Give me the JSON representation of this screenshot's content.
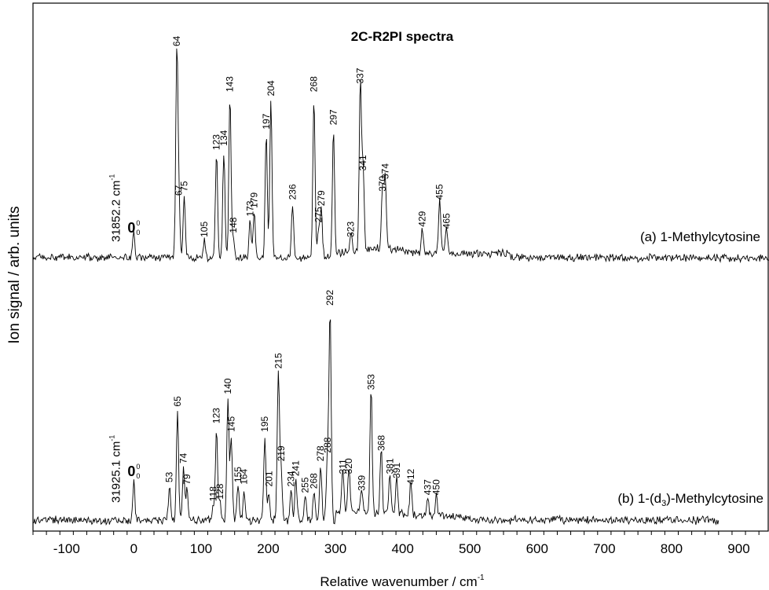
{
  "chart_data": {
    "type": "line",
    "title": "2C-R2PI spectra",
    "xlabel": "Relative wavenumber / cm",
    "xlabel_superscript": "-1",
    "ylabel": "Ion signal / arb. units",
    "xlim": [
      -150,
      945
    ],
    "xticks": [
      -100,
      0,
      100,
      200,
      300,
      400,
      500,
      600,
      700,
      800,
      900
    ],
    "xtick_labels": [
      "-100",
      "0",
      "100",
      "200",
      "300",
      "400",
      "500",
      "600",
      "700",
      "800",
      "900"
    ],
    "grid": false,
    "series": [
      {
        "name": "(a) 1-Methylcytosine",
        "origin_label": "31852.2 cm",
        "origin_label_superscript": "-1",
        "origin_band_main": "0",
        "origin_band_sup": "0",
        "origin_band_sub": "0",
        "x_range": [
          -150,
          945
        ],
        "baseline": 0,
        "peaks": [
          {
            "x": 0,
            "y": 0.12,
            "label": ""
          },
          {
            "x": 64,
            "y": 1.0,
            "label": "64"
          },
          {
            "x": 67,
            "y": 0.28,
            "label": "67"
          },
          {
            "x": 75,
            "y": 0.3,
            "label": "75"
          },
          {
            "x": 105,
            "y": 0.08,
            "label": "105"
          },
          {
            "x": 123,
            "y": 0.5,
            "label": "123"
          },
          {
            "x": 134,
            "y": 0.52,
            "label": "134"
          },
          {
            "x": 143,
            "y": 0.78,
            "label": "143"
          },
          {
            "x": 148,
            "y": 0.1,
            "label": "148"
          },
          {
            "x": 173,
            "y": 0.18,
            "label": "173"
          },
          {
            "x": 179,
            "y": 0.22,
            "label": "179"
          },
          {
            "x": 197,
            "y": 0.6,
            "label": "197"
          },
          {
            "x": 204,
            "y": 0.76,
            "label": "204"
          },
          {
            "x": 236,
            "y": 0.26,
            "label": "236"
          },
          {
            "x": 268,
            "y": 0.78,
            "label": "268"
          },
          {
            "x": 275,
            "y": 0.15,
            "label": "275"
          },
          {
            "x": 279,
            "y": 0.23,
            "label": "279"
          },
          {
            "x": 297,
            "y": 0.62,
            "label": "297"
          },
          {
            "x": 323,
            "y": 0.08,
            "label": "323"
          },
          {
            "x": 337,
            "y": 0.82,
            "label": "337"
          },
          {
            "x": 341,
            "y": 0.4,
            "label": "341"
          },
          {
            "x": 370,
            "y": 0.3,
            "label": "370"
          },
          {
            "x": 374,
            "y": 0.36,
            "label": "374"
          },
          {
            "x": 429,
            "y": 0.13,
            "label": "429"
          },
          {
            "x": 455,
            "y": 0.26,
            "label": "455"
          },
          {
            "x": 465,
            "y": 0.12,
            "label": "465"
          }
        ]
      },
      {
        "name": "(b) 1-(d",
        "name_subscript": "3",
        "name_suffix": ")-Methylcytosine",
        "origin_label": "31925.1 cm",
        "origin_label_superscript": "-1",
        "origin_band_main": "0",
        "origin_band_sup": "0",
        "origin_band_sub": "0",
        "x_range": [
          -150,
          870
        ],
        "baseline": 0,
        "peaks": [
          {
            "x": 0,
            "y": 0.18,
            "label": ""
          },
          {
            "x": 53,
            "y": 0.16,
            "label": "53"
          },
          {
            "x": 65,
            "y": 0.52,
            "label": "65"
          },
          {
            "x": 74,
            "y": 0.25,
            "label": "74"
          },
          {
            "x": 79,
            "y": 0.15,
            "label": "79"
          },
          {
            "x": 118,
            "y": 0.07,
            "label": "118"
          },
          {
            "x": 123,
            "y": 0.44,
            "label": "123"
          },
          {
            "x": 128,
            "y": 0.08,
            "label": "128"
          },
          {
            "x": 140,
            "y": 0.58,
            "label": "140"
          },
          {
            "x": 145,
            "y": 0.4,
            "label": "145"
          },
          {
            "x": 155,
            "y": 0.16,
            "label": "155"
          },
          {
            "x": 164,
            "y": 0.15,
            "label": "164"
          },
          {
            "x": 195,
            "y": 0.4,
            "label": "195"
          },
          {
            "x": 201,
            "y": 0.14,
            "label": "201"
          },
          {
            "x": 215,
            "y": 0.7,
            "label": "215"
          },
          {
            "x": 219,
            "y": 0.26,
            "label": "219"
          },
          {
            "x": 234,
            "y": 0.14,
            "label": "234"
          },
          {
            "x": 241,
            "y": 0.19,
            "label": "241"
          },
          {
            "x": 255,
            "y": 0.11,
            "label": "255"
          },
          {
            "x": 268,
            "y": 0.13,
            "label": "268"
          },
          {
            "x": 278,
            "y": 0.26,
            "label": "278"
          },
          {
            "x": 288,
            "y": 0.3,
            "label": "288"
          },
          {
            "x": 292,
            "y": 1.0,
            "label": "292"
          },
          {
            "x": 311,
            "y": 0.2,
            "label": "311"
          },
          {
            "x": 320,
            "y": 0.2,
            "label": "320"
          },
          {
            "x": 339,
            "y": 0.12,
            "label": "339"
          },
          {
            "x": 353,
            "y": 0.6,
            "label": "353"
          },
          {
            "x": 368,
            "y": 0.31,
            "label": "368"
          },
          {
            "x": 381,
            "y": 0.2,
            "label": "381"
          },
          {
            "x": 391,
            "y": 0.18,
            "label": "391"
          },
          {
            "x": 412,
            "y": 0.15,
            "label": "412"
          },
          {
            "x": 437,
            "y": 0.1,
            "label": "437"
          },
          {
            "x": 450,
            "y": 0.1,
            "label": "450"
          }
        ]
      }
    ]
  }
}
